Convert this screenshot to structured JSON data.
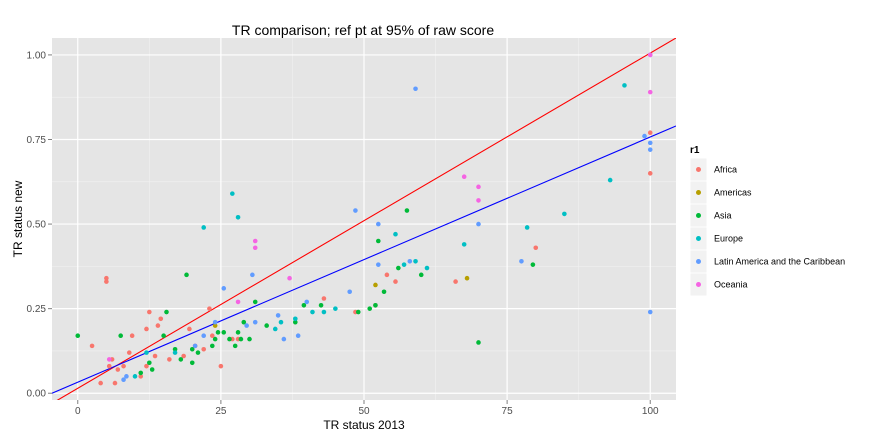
{
  "chart_data": {
    "type": "scatter",
    "title": "TR comparison; ref pt at 95% of raw score",
    "xlabel": "TR status 2013",
    "ylabel": "TR status new",
    "xlim": [
      -4.5,
      104.5
    ],
    "ylim": [
      -0.02,
      1.05
    ],
    "x_ticks": [
      0,
      25,
      50,
      75,
      100
    ],
    "y_ticks": [
      0.0,
      0.25,
      0.5,
      0.75,
      1.0
    ],
    "y_tick_labels": [
      "0.00",
      "0.25",
      "0.50",
      "0.75",
      "1.00"
    ],
    "grid": true,
    "legend": {
      "title": "r1",
      "placement": "right",
      "entries": [
        {
          "name": "Africa",
          "color": "#F8766D"
        },
        {
          "name": "Americas",
          "color": "#B79F00"
        },
        {
          "name": "Asia",
          "color": "#00BA38"
        },
        {
          "name": "Europe",
          "color": "#00BFC4"
        },
        {
          "name": "Latin America and the Caribbean",
          "color": "#619CFF"
        },
        {
          "name": "Oceania",
          "color": "#F564E3"
        }
      ]
    },
    "lines": [
      {
        "color": "#ff0000",
        "x": [
          -4.5,
          104.5
        ],
        "y": [
          -0.03,
          1.05
        ]
      },
      {
        "color": "#0000ff",
        "x": [
          -4.5,
          104.5
        ],
        "y": [
          0.0,
          0.79
        ]
      }
    ],
    "series": [
      {
        "name": "Africa",
        "color": "#F8766D",
        "points": [
          [
            2.5,
            0.14
          ],
          [
            4,
            0.03
          ],
          [
            5,
            0.34
          ],
          [
            5,
            0.33
          ],
          [
            5.5,
            0.08
          ],
          [
            6,
            0.1
          ],
          [
            6.5,
            0.03
          ],
          [
            7,
            0.07
          ],
          [
            8,
            0.08
          ],
          [
            9,
            0.12
          ],
          [
            9.5,
            0.17
          ],
          [
            11,
            0.05
          ],
          [
            12,
            0.08
          ],
          [
            12,
            0.19
          ],
          [
            12.5,
            0.24
          ],
          [
            13.5,
            0.11
          ],
          [
            14,
            0.2
          ],
          [
            14.5,
            0.22
          ],
          [
            16,
            0.1
          ],
          [
            18.5,
            0.11
          ],
          [
            19.5,
            0.19
          ],
          [
            20.5,
            0.14
          ],
          [
            22,
            0.13
          ],
          [
            23,
            0.25
          ],
          [
            23.5,
            0.17
          ],
          [
            25,
            0.08
          ],
          [
            27,
            0.16
          ],
          [
            28,
            0.16
          ],
          [
            43,
            0.28
          ],
          [
            48.5,
            0.24
          ],
          [
            52,
            0.26
          ],
          [
            54,
            0.35
          ],
          [
            55.5,
            0.33
          ],
          [
            66,
            0.33
          ],
          [
            80,
            0.43
          ],
          [
            100,
            0.77
          ],
          [
            100,
            0.65
          ]
        ]
      },
      {
        "name": "Americas",
        "color": "#B79F00",
        "points": [
          [
            24,
            0.2
          ],
          [
            52,
            0.32
          ],
          [
            68,
            0.34
          ]
        ]
      },
      {
        "name": "Asia",
        "color": "#00BA38",
        "points": [
          [
            0,
            0.17
          ],
          [
            7.5,
            0.17
          ],
          [
            11,
            0.06
          ],
          [
            12.5,
            0.09
          ],
          [
            13,
            0.07
          ],
          [
            15,
            0.17
          ],
          [
            15.5,
            0.24
          ],
          [
            17,
            0.13
          ],
          [
            18,
            0.1
          ],
          [
            19,
            0.35
          ],
          [
            20,
            0.13
          ],
          [
            20,
            0.09
          ],
          [
            21,
            0.12
          ],
          [
            23.5,
            0.14
          ],
          [
            24,
            0.16
          ],
          [
            24.5,
            0.18
          ],
          [
            25.5,
            0.18
          ],
          [
            26.5,
            0.16
          ],
          [
            27.5,
            0.14
          ],
          [
            28,
            0.18
          ],
          [
            28.5,
            0.16
          ],
          [
            29,
            0.21
          ],
          [
            30,
            0.16
          ],
          [
            31,
            0.27
          ],
          [
            33,
            0.2
          ],
          [
            38,
            0.21
          ],
          [
            39.5,
            0.26
          ],
          [
            42.5,
            0.26
          ],
          [
            49,
            0.24
          ],
          [
            51,
            0.25
          ],
          [
            52,
            0.26
          ],
          [
            52.5,
            0.45
          ],
          [
            53.5,
            0.3
          ],
          [
            56,
            0.37
          ],
          [
            57.5,
            0.54
          ],
          [
            60,
            0.35
          ],
          [
            70,
            0.15
          ],
          [
            79.5,
            0.38
          ]
        ]
      },
      {
        "name": "Europe",
        "color": "#00BFC4",
        "points": [
          [
            10,
            0.05
          ],
          [
            12,
            0.12
          ],
          [
            17,
            0.12
          ],
          [
            22,
            0.49
          ],
          [
            27,
            0.59
          ],
          [
            28,
            0.52
          ],
          [
            34.5,
            0.19
          ],
          [
            35.5,
            0.21
          ],
          [
            38,
            0.22
          ],
          [
            41,
            0.24
          ],
          [
            43,
            0.24
          ],
          [
            45,
            0.25
          ],
          [
            55.5,
            0.47
          ],
          [
            57,
            0.38
          ],
          [
            59,
            0.39
          ],
          [
            61,
            0.37
          ],
          [
            67.5,
            0.44
          ],
          [
            78.5,
            0.49
          ],
          [
            85,
            0.53
          ],
          [
            93,
            0.63
          ],
          [
            95.5,
            0.91
          ]
        ]
      },
      {
        "name": "Latin America and the Caribbean",
        "color": "#619CFF",
        "points": [
          [
            8,
            0.04
          ],
          [
            8.5,
            0.05
          ],
          [
            20.5,
            0.14
          ],
          [
            22,
            0.17
          ],
          [
            24,
            0.21
          ],
          [
            25.5,
            0.31
          ],
          [
            29.5,
            0.2
          ],
          [
            30.5,
            0.35
          ],
          [
            31,
            0.21
          ],
          [
            35,
            0.23
          ],
          [
            36,
            0.16
          ],
          [
            38.5,
            0.17
          ],
          [
            40,
            0.27
          ],
          [
            47.5,
            0.3
          ],
          [
            48.5,
            0.54
          ],
          [
            52.5,
            0.5
          ],
          [
            52.5,
            0.38
          ],
          [
            58,
            0.39
          ],
          [
            59,
            0.9
          ],
          [
            70,
            0.5
          ],
          [
            77.5,
            0.39
          ],
          [
            99,
            0.76
          ],
          [
            100,
            0.74
          ],
          [
            100,
            0.72
          ],
          [
            100,
            0.24
          ],
          [
            100,
            1.0
          ]
        ]
      },
      {
        "name": "Oceania",
        "color": "#F564E3",
        "points": [
          [
            5.5,
            0.1
          ],
          [
            28,
            0.27
          ],
          [
            31,
            0.45
          ],
          [
            31,
            0.43
          ],
          [
            37,
            0.34
          ],
          [
            67.5,
            0.64
          ],
          [
            70,
            0.61
          ],
          [
            70,
            0.57
          ],
          [
            100,
            0.89
          ],
          [
            100,
            1.0
          ]
        ]
      }
    ]
  }
}
